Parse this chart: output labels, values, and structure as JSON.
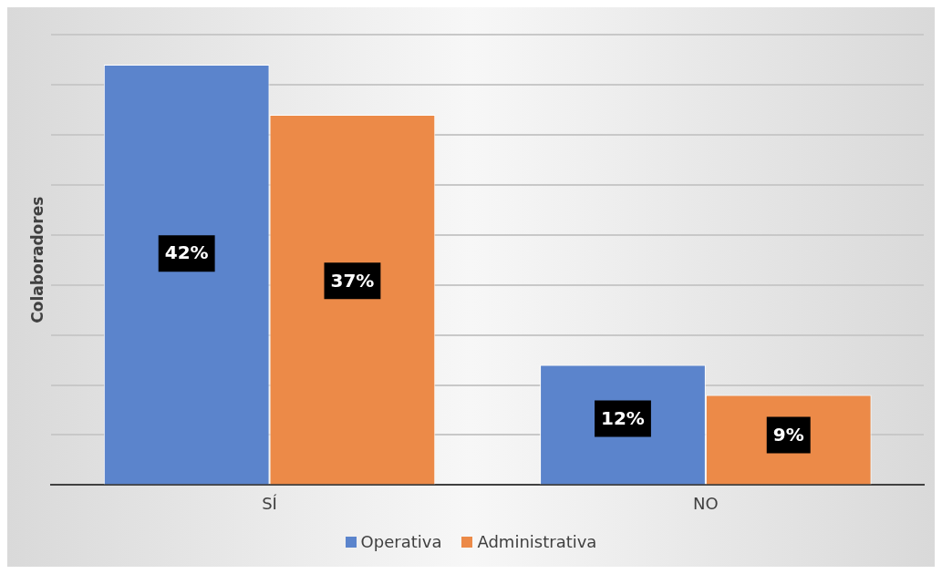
{
  "chart_data": {
    "type": "bar",
    "ylabel": "Colaboradores",
    "categories": [
      "SÍ",
      "NO"
    ],
    "series": [
      {
        "name": "Operativa",
        "color": "#5b84cc",
        "values": [
          42,
          12
        ],
        "value_labels": [
          "42%",
          "12%"
        ]
      },
      {
        "name": "Administrativa",
        "color": "#ec8a48",
        "values": [
          37,
          9
        ],
        "value_labels": [
          "37%",
          "9%"
        ]
      }
    ],
    "grid": "y",
    "tick_labels": "x",
    "legend": "bottom"
  }
}
